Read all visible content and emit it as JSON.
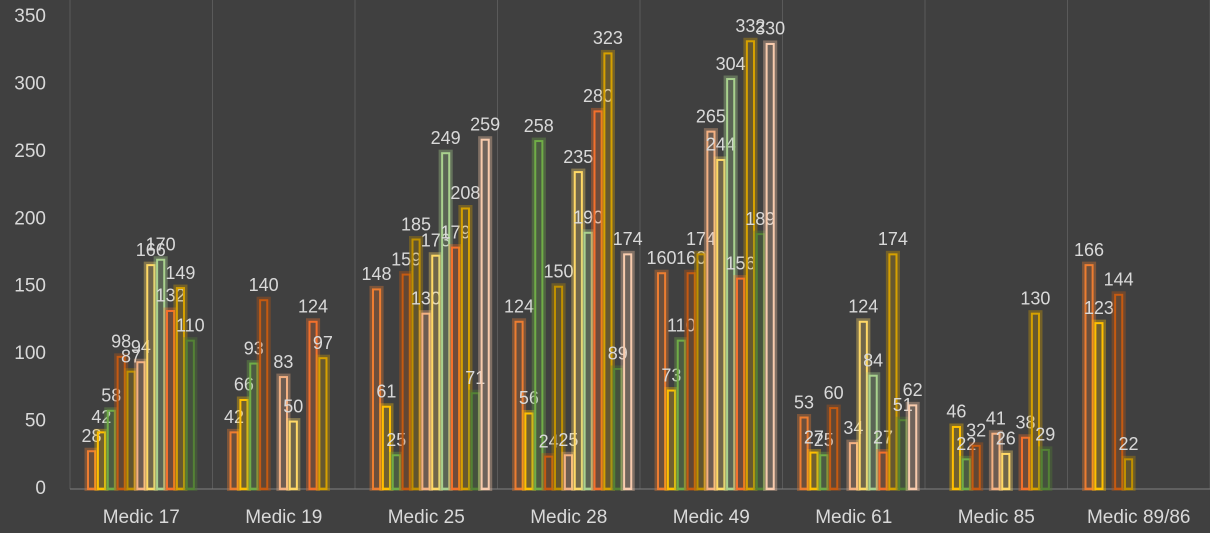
{
  "chart_data": {
    "type": "bar",
    "categories": [
      "Medic 17",
      "Medic 19",
      "Medic 25",
      "Medic 28",
      "Medic 49",
      "Medic 61",
      "Medic 85",
      "Medic 89/86"
    ],
    "series": [
      {
        "color": "#ed7d31",
        "values": [
          28,
          42,
          148,
          124,
          160,
          53,
          null,
          166
        ]
      },
      {
        "color": "#ffc000",
        "values": [
          42,
          66,
          61,
          56,
          73,
          27,
          46,
          123
        ]
      },
      {
        "color": "#70ad47",
        "values": [
          58,
          93,
          25,
          258,
          110,
          25,
          22,
          null
        ]
      },
      {
        "color": "#c55a11",
        "values": [
          98,
          140,
          159,
          24,
          160,
          60,
          32,
          144
        ]
      },
      {
        "color": "#bf9000",
        "values": [
          87,
          null,
          185,
          150,
          174,
          null,
          null,
          22
        ]
      },
      {
        "color": "#f4b183",
        "values": [
          94,
          83,
          130,
          25,
          265,
          34,
          41,
          null
        ]
      },
      {
        "color": "#ffd966",
        "values": [
          166,
          50,
          173,
          235,
          244,
          124,
          26,
          null
        ]
      },
      {
        "color": "#a9d18e",
        "values": [
          170,
          null,
          249,
          190,
          304,
          84,
          null,
          null
        ]
      },
      {
        "color": "#f4702c",
        "values": [
          132,
          124,
          179,
          280,
          156,
          27,
          38,
          null
        ]
      },
      {
        "color": "#d6a100",
        "values": [
          149,
          97,
          208,
          323,
          332,
          174,
          130,
          null
        ]
      },
      {
        "color": "#548235",
        "values": [
          110,
          null,
          71,
          89,
          189,
          51,
          29,
          null
        ]
      },
      {
        "color": "#f8cbad",
        "values": [
          null,
          null,
          259,
          174,
          330,
          62,
          null,
          null
        ]
      }
    ],
    "ylim": [
      0,
      350
    ],
    "yticks": [
      0,
      50,
      100,
      150,
      200,
      250,
      300,
      350
    ],
    "grid": true
  }
}
